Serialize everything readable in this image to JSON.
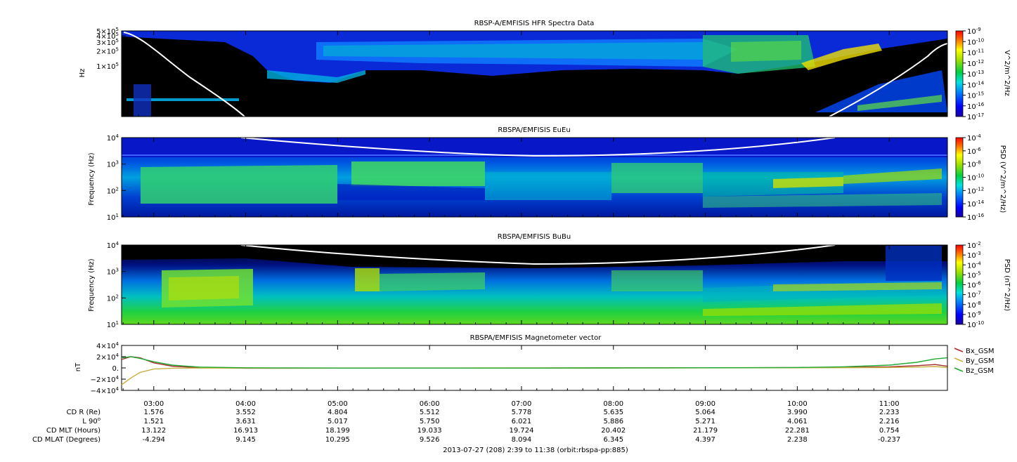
{
  "chart_data": [
    {
      "type": "heatmap",
      "title": "RBSP-A/EMFISIS  HFR Spectra Data",
      "ylabel": "Hz",
      "ytick_labels": [
        {
          "base": "1×10",
          "exp": "5",
          "value": 100000
        },
        {
          "base": "2×10",
          "exp": "5",
          "value": 200000
        },
        {
          "base": "3×10",
          "exp": "5",
          "value": 300000
        },
        {
          "base": "4×10",
          "exp": "5",
          "value": 400000
        },
        {
          "base": "5×10",
          "exp": "5",
          "value": 500000
        }
      ],
      "ylim": [
        10000,
        500000
      ],
      "colorbar_label": "V^2/m^2/Hz",
      "colorbar_ticks": [
        "10-9",
        "10-10",
        "10-11",
        "10-12",
        "10-13",
        "10-14",
        "10-15",
        "10-16",
        "10-17"
      ],
      "colorbar_exponents": [
        -9,
        -10,
        -11,
        -12,
        -13,
        -14,
        -15,
        -16,
        -17
      ]
    },
    {
      "type": "heatmap",
      "title": "RBSPA/EMFISIS  EuEu",
      "ylabel": "Frequency (Hz)",
      "ytick_exponents": [
        1,
        2,
        3,
        4
      ],
      "ylim": [
        10,
        10000
      ],
      "colorbar_label": "PSD (V^2/m^2/Hz)",
      "colorbar_exponents": [
        -4,
        -6,
        -8,
        -10,
        -12,
        -14,
        -16
      ]
    },
    {
      "type": "heatmap",
      "title": "RBSPA/EMFISIS  BuBu",
      "ylabel": "Frequency (Hz)",
      "ytick_exponents": [
        1,
        2,
        3,
        4
      ],
      "ylim": [
        10,
        10000
      ],
      "colorbar_label": "PSD (nT^2/Hz)",
      "colorbar_exponents": [
        -2,
        -3,
        -4,
        -5,
        -6,
        -7,
        -8,
        -9,
        -10
      ]
    },
    {
      "type": "line",
      "title": "RBSPA/EMFISIS  Magnetometer vector",
      "ylabel": "nT",
      "ylim": [
        -40000,
        40000
      ],
      "ytick_labels": [
        {
          "base": "4×10",
          "exp": "4"
        },
        {
          "base": "2×10",
          "exp": "4"
        },
        {
          "base": "0.",
          "exp": ""
        },
        {
          "base": "−2×10",
          "exp": "4"
        },
        {
          "base": "−4×10",
          "exp": "4"
        }
      ],
      "x_hours": [
        2.65,
        2.75,
        2.85,
        3.0,
        3.2,
        3.5,
        4.0,
        5.0,
        6.0,
        7.0,
        8.0,
        9.0,
        10.0,
        10.5,
        11.0,
        11.3,
        11.5,
        11.63
      ],
      "series": [
        {
          "name": "Bx_GSM",
          "color": "#a52a2a",
          "values": [
            15000,
            20000,
            18000,
            9000,
            3000,
            500,
            -500,
            -400,
            -300,
            -200,
            0,
            200,
            500,
            1000,
            2000,
            4000,
            6000,
            3000
          ]
        },
        {
          "name": "By_GSM",
          "color": "#c8b040",
          "values": [
            -30000,
            -18000,
            -8000,
            -2000,
            -500,
            -300,
            -200,
            -100,
            -100,
            0,
            0,
            100,
            200,
            400,
            800,
            1500,
            2500,
            500
          ]
        },
        {
          "name": "Bz_GSM",
          "color": "#22aa33",
          "values": [
            18000,
            20000,
            17000,
            11000,
            5000,
            1500,
            200,
            -200,
            -300,
            -200,
            0,
            200,
            800,
            2000,
            5000,
            10000,
            16000,
            18000
          ]
        }
      ]
    }
  ],
  "xaxis": {
    "tick_labels": [
      "03:00",
      "04:00",
      "05:00",
      "06:00",
      "07:00",
      "08:00",
      "09:00",
      "10:00",
      "11:00"
    ],
    "tick_hours": [
      3,
      4,
      5,
      6,
      7,
      8,
      9,
      10,
      11
    ],
    "range_hours": [
      2.65,
      11.6333
    ]
  },
  "ephemeris": {
    "row_labels": [
      "CD R (Re)",
      "L 90",
      "CD MLT (Hours)",
      "CD MLAT (Degrees)"
    ],
    "l_superscript": "o",
    "rows": [
      [
        "1.576",
        "3.552",
        "4.804",
        "5.512",
        "5.778",
        "5.635",
        "5.064",
        "3.990",
        "2.233"
      ],
      [
        "1.521",
        "3.631",
        "5.017",
        "5.750",
        "6.021",
        "5.886",
        "5.271",
        "4.061",
        "2.216"
      ],
      [
        "13.122",
        "16.913",
        "18.199",
        "19.033",
        "19.724",
        "20.402",
        "21.179",
        "22.281",
        "0.754"
      ],
      [
        "-4.294",
        "9.145",
        "10.295",
        "9.526",
        "8.094",
        "6.345",
        "4.397",
        "2.238",
        "-0.237"
      ]
    ]
  },
  "footer": "2013-07-27 (208) 2:39 to 11:38 (orbit:rbspa-pp:885)"
}
